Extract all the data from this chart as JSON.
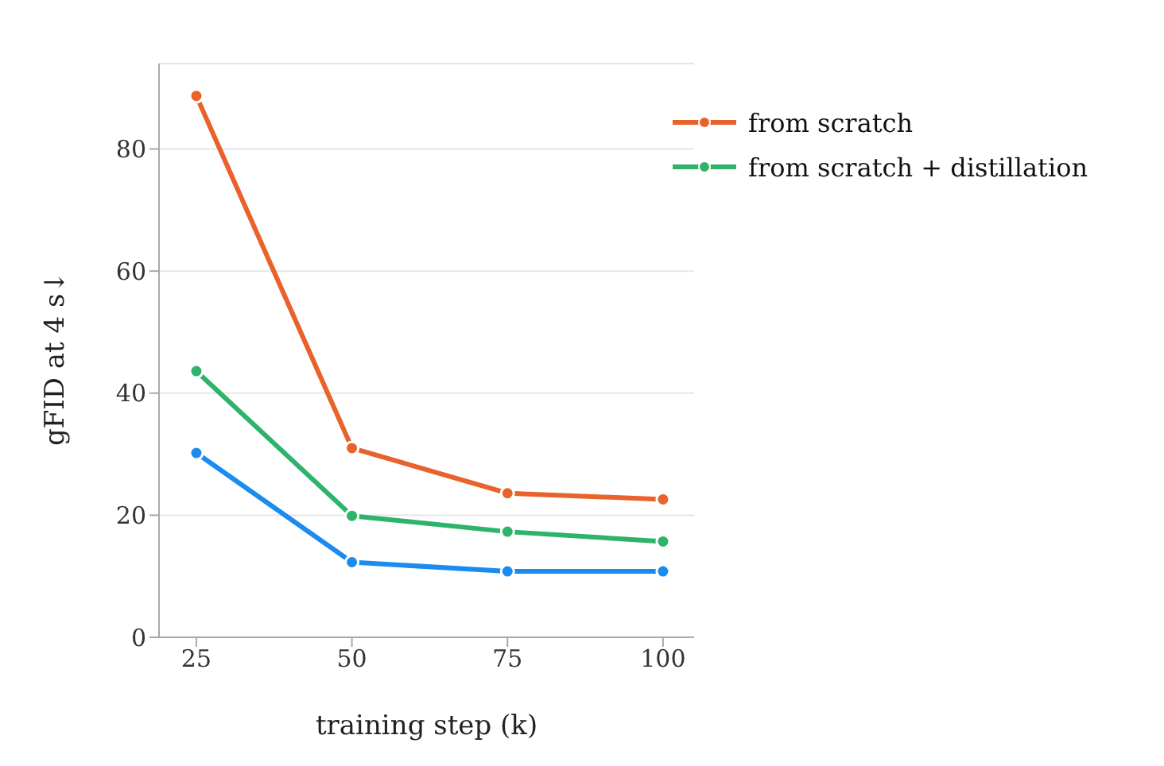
{
  "chart_data": {
    "type": "line",
    "xlabel": "training step (k)",
    "ylabel": "gFID at 4 s↓",
    "x": [
      25,
      50,
      75,
      100
    ],
    "xlim": [
      19,
      105
    ],
    "xticks": [
      25,
      50,
      75,
      100
    ],
    "ylim": [
      0,
      94
    ],
    "yticks": [
      0,
      20,
      40,
      60,
      80
    ],
    "grid": "y",
    "legend": "top right",
    "marker": "circle",
    "line_style": "solid",
    "series": [
      {
        "color": "#1a8cf0",
        "values": [
          30.2,
          12.3,
          10.8,
          10.8
        ]
      },
      {
        "name": "from scratch",
        "color": "#e8622b",
        "values": [
          88.7,
          31.0,
          23.6,
          22.6
        ]
      },
      {
        "name": "from scratch + distillation",
        "color": "#2db36a",
        "values": [
          43.6,
          19.9,
          17.3,
          15.7
        ]
      }
    ]
  }
}
